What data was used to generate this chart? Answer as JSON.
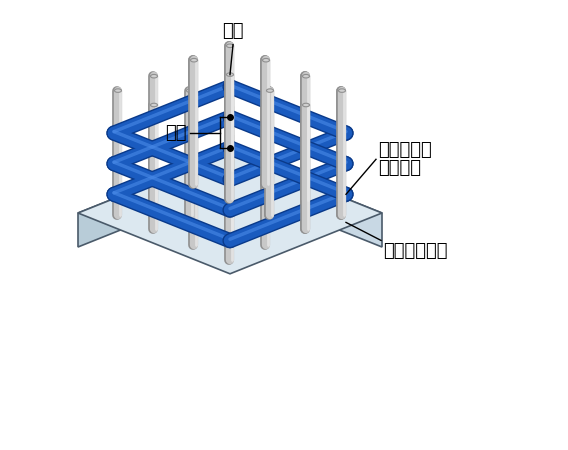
{
  "bg_color": "#ffffff",
  "concrete_top_color": "#dce8f0",
  "concrete_front_color": "#b8ccd8",
  "concrete_side_color": "#c8d8e4",
  "concrete_edge_color": "#4a5a6a",
  "rebar_main_color": "#c8c8c8",
  "rebar_highlight_color": "#e8e8e8",
  "rebar_shadow_color": "#909090",
  "hoop_color": "#1a5bbf",
  "hoop_dark_color": "#0a3a8a",
  "hoop_light_color": "#4a8be8",
  "label_shukkin": "主筋",
  "label_yosetsu1": "溶接閉鎖型",
  "label_yosetsu2": "フープ筋",
  "label_yosetsu": "溶接",
  "label_concrete": "コンクリート",
  "font_size": 13
}
